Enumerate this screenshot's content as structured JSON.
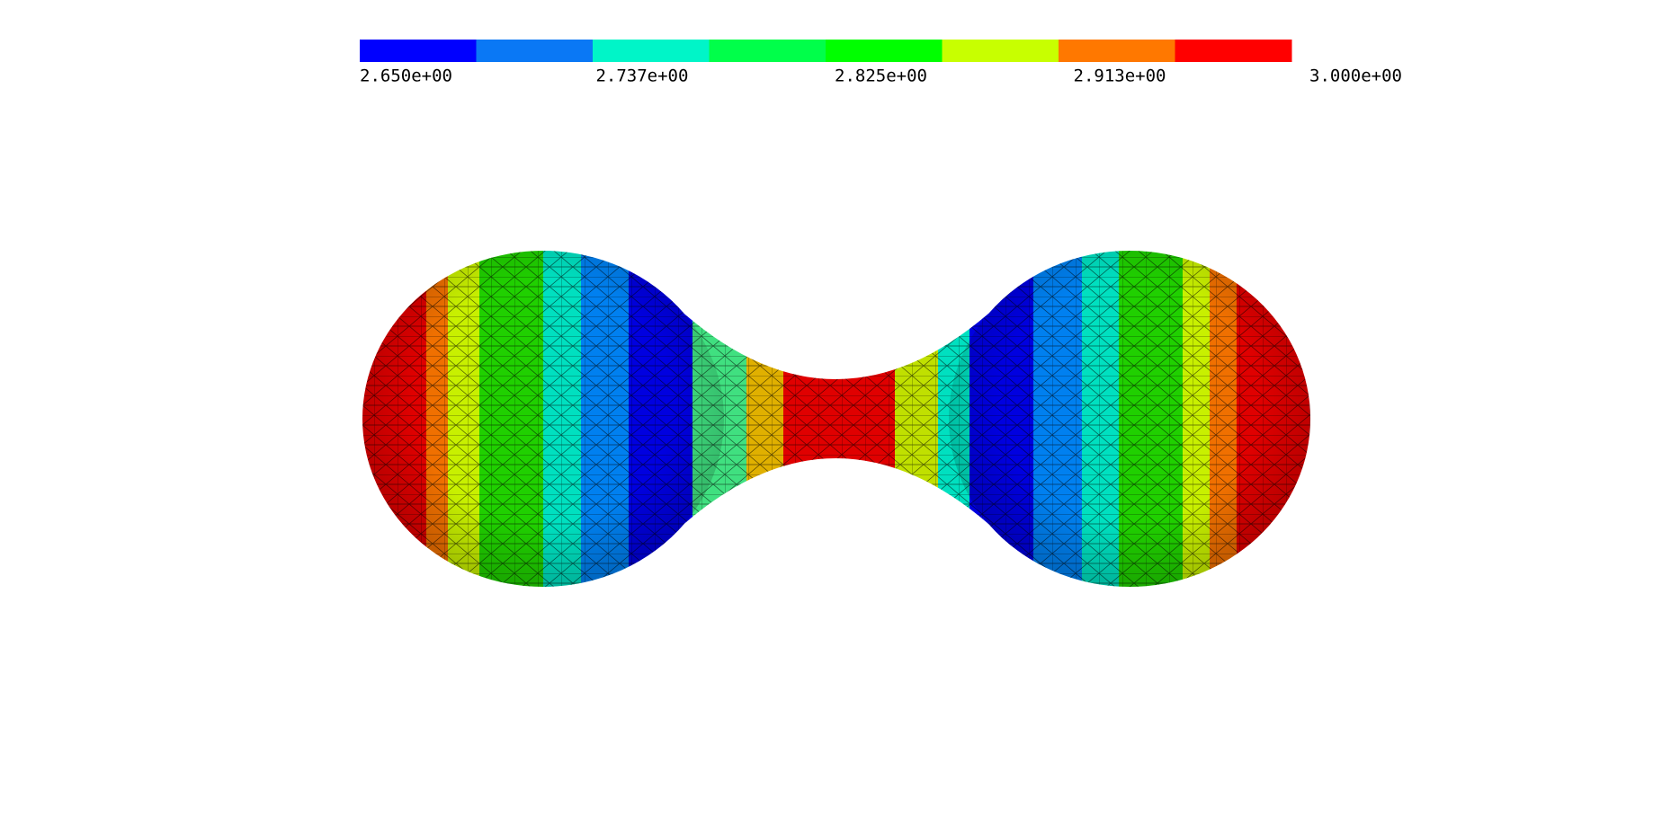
{
  "colorbar": {
    "colors": [
      "#0000ff",
      "#0a78f5",
      "#00f5c8",
      "#00ff4a",
      "#00ff00",
      "#c8ff00",
      "#ff7800",
      "#ff0000"
    ],
    "ticks": [
      {
        "value": 2.65,
        "label": "2.650e+00"
      },
      {
        "value": 2.737,
        "label": "2.737e+00"
      },
      {
        "value": 2.825,
        "label": "2.825e+00"
      },
      {
        "value": 2.913,
        "label": "2.913e+00"
      },
      {
        "value": 3.0,
        "label": "3.000e+00"
      }
    ]
  }
}
